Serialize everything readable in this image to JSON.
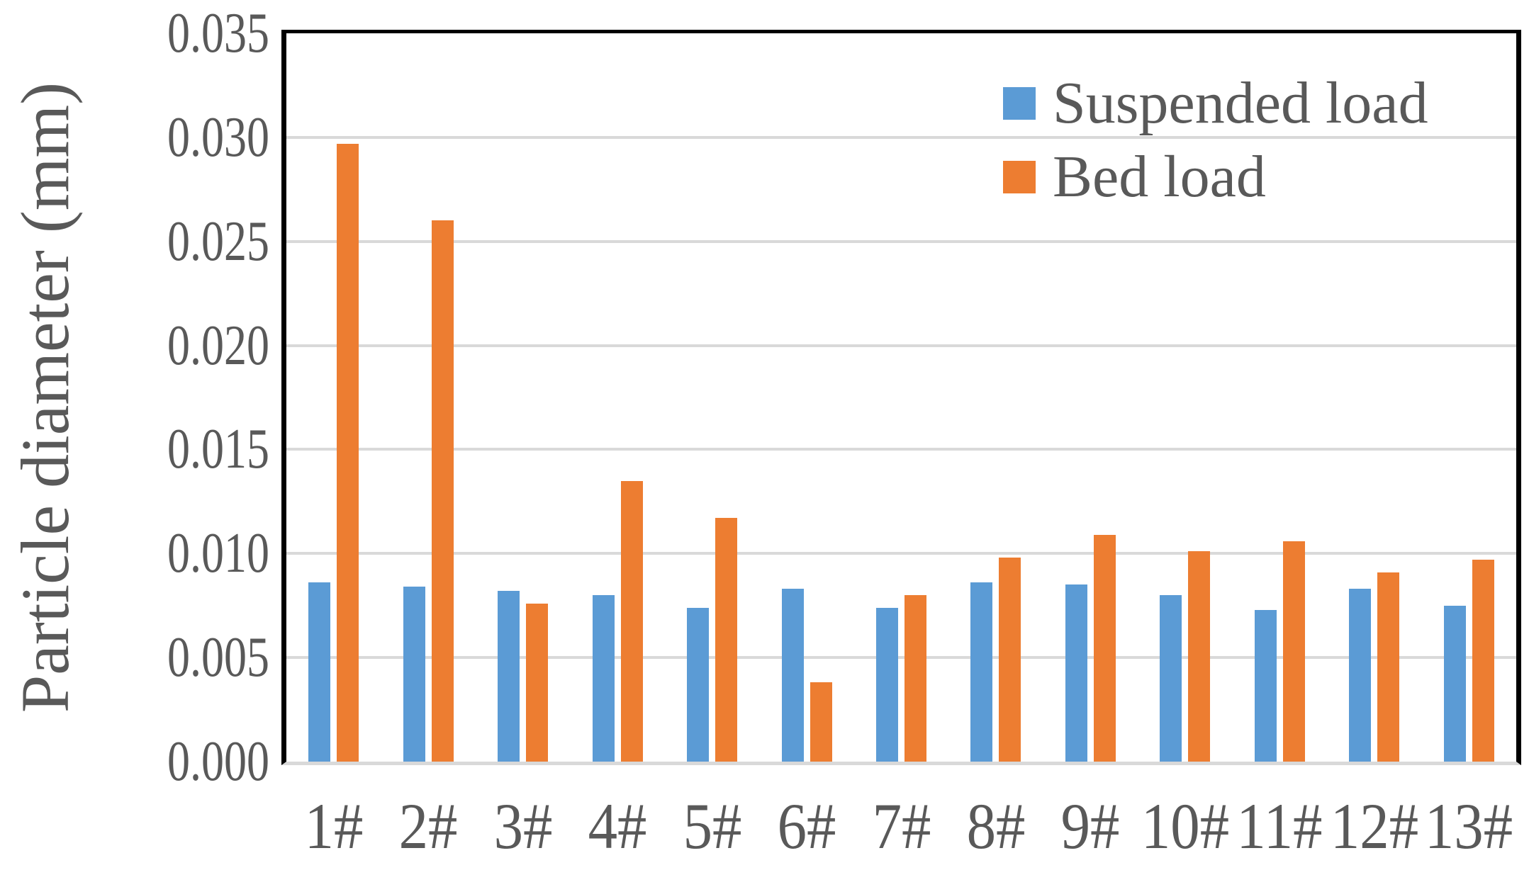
{
  "chart_data": {
    "type": "bar",
    "title": "",
    "categories": [
      "1#",
      "2#",
      "3#",
      "4#",
      "5#",
      "6#",
      "7#",
      "8#",
      "9#",
      "10#",
      "11#",
      "12#",
      "13#"
    ],
    "series": [
      {
        "name": "Suspended load",
        "color": "#5B9BD5",
        "values": [
          0.0086,
          0.0084,
          0.0082,
          0.008,
          0.0074,
          0.0083,
          0.0074,
          0.0086,
          0.0085,
          0.008,
          0.0073,
          0.0083,
          0.0075
        ]
      },
      {
        "name": "Bed load",
        "color": "#ED7D31",
        "values": [
          0.0297,
          0.026,
          0.0076,
          0.0135,
          0.0117,
          0.0038,
          0.008,
          0.0098,
          0.0109,
          0.0101,
          0.0106,
          0.0091,
          0.0097
        ]
      }
    ],
    "xlabel": "",
    "ylabel": "Particle diameter (mm)",
    "ylim": [
      0,
      0.035
    ],
    "ytick_step": 0.005,
    "ytick_labels": [
      "0.000",
      "0.005",
      "0.010",
      "0.015",
      "0.020",
      "0.025",
      "0.030",
      "0.035"
    ],
    "grid": true,
    "legend_position": "top-right-inside"
  },
  "colors": {
    "text": "#595959",
    "gridline": "#D9D9D9",
    "axis_border": "#000000",
    "baseline": "#D9D9D9",
    "background": "#FFFFFF"
  }
}
